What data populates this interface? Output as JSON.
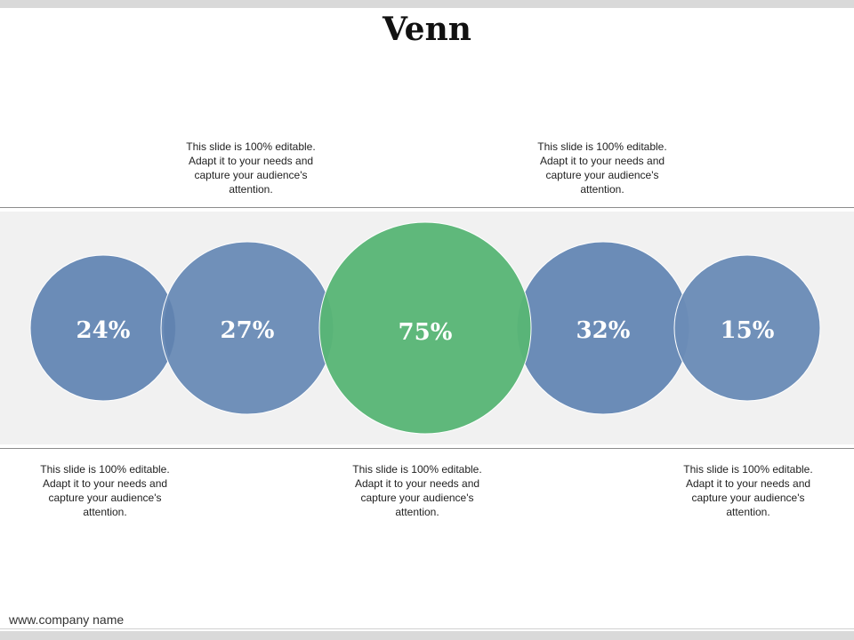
{
  "slide": {
    "title": "Venn",
    "footer": "www.company name"
  },
  "colors": {
    "blue": "#6b8cb7",
    "green": "#58b576",
    "band": "#f1f1f1"
  },
  "circles": [
    {
      "label": "24%",
      "color": "blue"
    },
    {
      "label": "27%",
      "color": "blue"
    },
    {
      "label": "75%",
      "color": "green"
    },
    {
      "label": "32%",
      "color": "blue"
    },
    {
      "label": "15%",
      "color": "blue"
    }
  ],
  "notes": [
    {
      "text": "This slide is 100% editable. Adapt it to your needs and capture your audience's attention."
    },
    {
      "text": "This slide is 100% editable. Adapt it to your needs and capture your audience's attention."
    },
    {
      "text": "This slide is 100% editable. Adapt it to your needs and capture your audience's attention."
    },
    {
      "text": "This slide is 100% editable. Adapt it to your needs and capture your audience's attention."
    },
    {
      "text": "This slide is 100% editable. Adapt it to your needs and capture your audience's attention."
    }
  ]
}
